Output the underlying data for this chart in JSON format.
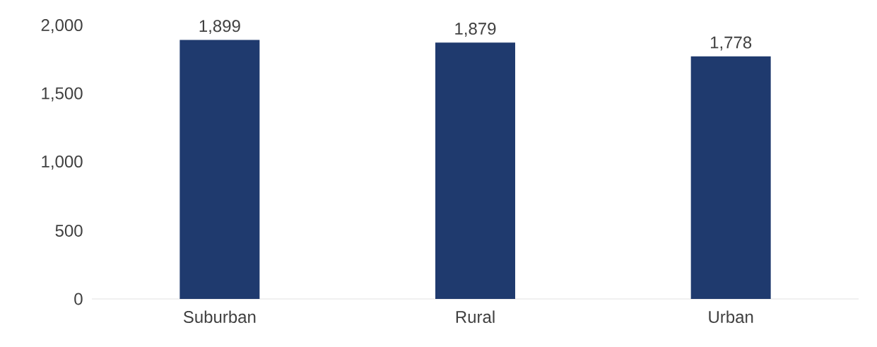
{
  "chart_data": {
    "type": "bar",
    "categories": [
      "Suburban",
      "Rural",
      "Urban"
    ],
    "values": [
      1899,
      1879,
      1778
    ],
    "value_labels": [
      "1,899",
      "1,879",
      "1,778"
    ],
    "color": "#1f3a6e",
    "ylim": [
      0,
      2000
    ],
    "yticks": [
      0,
      500,
      {
        "value": 1000,
        "label": "1,000"
      },
      {
        "value": 1500,
        "label": "1,500"
      },
      {
        "value": 2000,
        "label": "2,000"
      }
    ],
    "grid": false
  }
}
